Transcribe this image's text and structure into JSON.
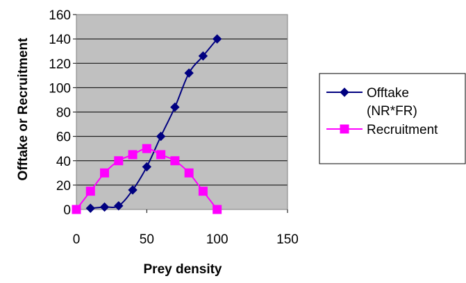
{
  "chart_data": {
    "type": "line",
    "title": "",
    "xlabel": "Prey density",
    "ylabel": "Offtake or Recruitment",
    "xlim": [
      0,
      150
    ],
    "ylim": [
      0,
      160
    ],
    "x_ticks": [
      0,
      50,
      100,
      150
    ],
    "y_ticks": [
      0,
      20,
      40,
      60,
      80,
      100,
      120,
      140,
      160
    ],
    "grid": "horizontal",
    "plot_background": "#c0c0c0",
    "legend_position": "right",
    "series": [
      {
        "name": "Offtake (NR*FR)",
        "legend_lines": [
          "Offtake",
          "(NR*FR)"
        ],
        "color": "#000080",
        "marker": "diamond",
        "x": [
          10,
          20,
          30,
          40,
          50,
          60,
          70,
          80,
          90,
          100
        ],
        "y": [
          1,
          2,
          3,
          16,
          35,
          60,
          84,
          112,
          126,
          140
        ]
      },
      {
        "name": "Recruitment",
        "legend_lines": [
          "Recruitment"
        ],
        "color": "#ff00ff",
        "marker": "square",
        "x": [
          0,
          10,
          20,
          30,
          40,
          50,
          60,
          70,
          80,
          90,
          100
        ],
        "y": [
          0,
          15,
          30,
          40,
          45,
          50,
          45,
          40,
          30,
          15,
          0
        ]
      }
    ]
  }
}
